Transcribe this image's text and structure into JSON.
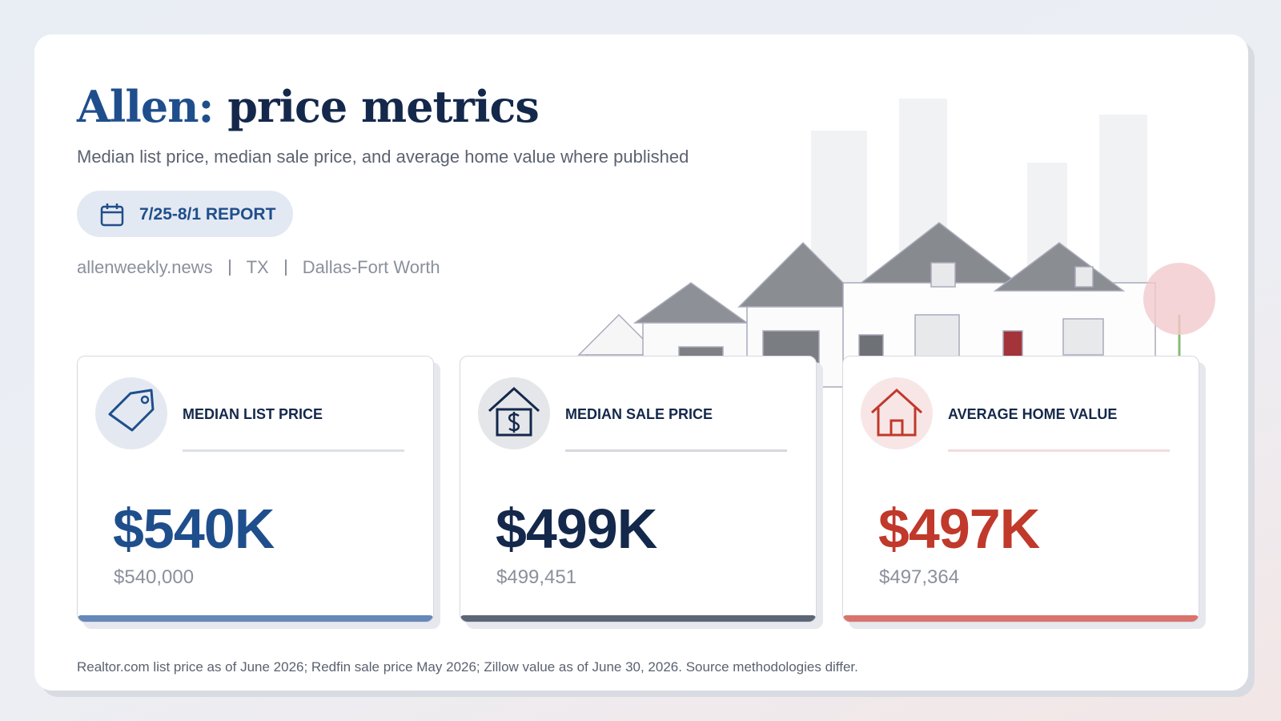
{
  "header": {
    "title_place": "Allen:",
    "title_rest": "price metrics",
    "subtitle": "Median list price, median sale price, and average home value where published",
    "badge": "7/25-8/1 REPORT",
    "meta": [
      "allenweekly.news",
      "TX",
      "Dallas-Fort Worth"
    ]
  },
  "cards": [
    {
      "label": "MEDIAN LIST PRICE",
      "value": "$540K",
      "detail": "$540,000"
    },
    {
      "label": "MEDIAN SALE PRICE",
      "value": "$499K",
      "detail": "$499,451"
    },
    {
      "label": "AVERAGE HOME VALUE",
      "value": "$497K",
      "detail": "$497,364"
    }
  ],
  "footer": {
    "note": "Realtor.com list price as of June 2026; Redfin sale price May 2026; Zillow value as of June 30, 2026. Source methodologies differ."
  }
}
